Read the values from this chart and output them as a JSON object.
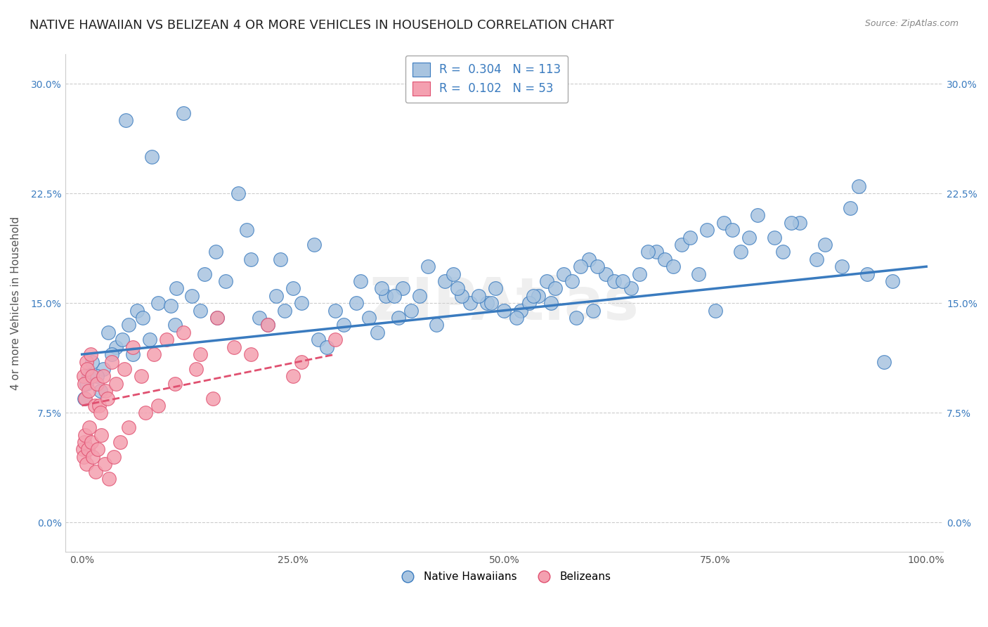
{
  "title": "NATIVE HAWAIIAN VS BELIZEAN 4 OR MORE VEHICLES IN HOUSEHOLD CORRELATION CHART",
  "source": "Source: ZipAtlas.com",
  "ylabel": "4 or more Vehicles in Household",
  "xlabel": "",
  "xlim": [
    0,
    100
  ],
  "ylim": [
    -2,
    32
  ],
  "yticks": [
    0,
    7.5,
    15,
    22.5,
    30
  ],
  "xticks": [
    0,
    25,
    50,
    75,
    100
  ],
  "xtick_labels": [
    "0.0%",
    "25.0%",
    "50.0%",
    "75.0%",
    "100.0%"
  ],
  "ytick_labels": [
    "0.0%",
    "7.5%",
    "15.0%",
    "22.5%",
    "30.0%"
  ],
  "blue_R": 0.304,
  "blue_N": 113,
  "pink_R": 0.102,
  "pink_N": 53,
  "blue_color": "#a8c4e0",
  "pink_color": "#f4a0b0",
  "blue_line_color": "#3a7bbf",
  "pink_line_color": "#e05070",
  "legend_color": "#3a7bbf",
  "title_fontsize": 13,
  "axis_label_fontsize": 11,
  "tick_fontsize": 10,
  "background_color": "#ffffff",
  "watermark_text": "ZIPAtlas",
  "blue_scatter_x": [
    5.2,
    12.0,
    18.5,
    8.3,
    3.1,
    2.5,
    4.0,
    6.5,
    1.2,
    0.8,
    0.5,
    0.3,
    1.8,
    2.2,
    3.5,
    4.8,
    5.5,
    7.2,
    9.0,
    10.5,
    11.2,
    13.0,
    14.5,
    15.8,
    17.0,
    19.5,
    21.0,
    23.5,
    25.0,
    27.5,
    30.0,
    32.5,
    35.0,
    37.5,
    40.0,
    43.0,
    46.0,
    49.0,
    52.0,
    55.0,
    48.0,
    51.5,
    54.0,
    57.0,
    60.0,
    55.5,
    58.0,
    62.0,
    65.0,
    68.0,
    71.0,
    74.0,
    78.0,
    82.0,
    85.0,
    90.0,
    42.0,
    44.0,
    33.0,
    36.0,
    38.0,
    41.0,
    28.0,
    20.0,
    16.0,
    22.0,
    24.0,
    26.0,
    29.0,
    31.0,
    34.0,
    39.0,
    45.0,
    50.0,
    53.0,
    56.0,
    59.0,
    63.0,
    66.0,
    69.0,
    72.0,
    76.0,
    80.0,
    87.0,
    93.0,
    96.0,
    48.5,
    44.5,
    37.0,
    61.0,
    67.0,
    73.0,
    77.0,
    83.0,
    88.0,
    6.0,
    8.0,
    11.0,
    14.0,
    23.0,
    35.5,
    47.0,
    64.0,
    70.0,
    75.0,
    79.0,
    84.0,
    91.0,
    58.5,
    95.0,
    53.5,
    60.5,
    92.0
  ],
  "blue_scatter_y": [
    27.5,
    28.0,
    22.5,
    25.0,
    13.0,
    10.5,
    12.0,
    14.5,
    11.0,
    10.0,
    9.5,
    8.5,
    10.0,
    9.0,
    11.5,
    12.5,
    13.5,
    14.0,
    15.0,
    14.8,
    16.0,
    15.5,
    17.0,
    18.5,
    16.5,
    20.0,
    14.0,
    18.0,
    16.0,
    19.0,
    14.5,
    15.0,
    13.0,
    14.0,
    15.5,
    16.5,
    15.0,
    16.0,
    14.5,
    16.5,
    15.0,
    14.0,
    15.5,
    17.0,
    18.0,
    15.0,
    16.5,
    17.0,
    16.0,
    18.5,
    19.0,
    20.0,
    18.5,
    19.5,
    20.5,
    17.5,
    13.5,
    17.0,
    16.5,
    15.5,
    16.0,
    17.5,
    12.5,
    18.0,
    14.0,
    13.5,
    14.5,
    15.0,
    12.0,
    13.5,
    14.0,
    14.5,
    15.5,
    14.5,
    15.0,
    16.0,
    17.5,
    16.5,
    17.0,
    18.0,
    19.5,
    20.5,
    21.0,
    18.0,
    17.0,
    16.5,
    15.0,
    16.0,
    15.5,
    17.5,
    18.5,
    17.0,
    20.0,
    18.5,
    19.0,
    11.5,
    12.5,
    13.5,
    14.5,
    15.5,
    16.0,
    15.5,
    16.5,
    17.5,
    14.5,
    19.5,
    20.5,
    21.5,
    14.0,
    11.0,
    15.5,
    14.5,
    23.0
  ],
  "pink_scatter_x": [
    0.2,
    0.3,
    0.5,
    0.4,
    0.6,
    0.8,
    1.0,
    1.2,
    1.5,
    1.8,
    2.0,
    2.2,
    2.5,
    2.8,
    3.0,
    3.5,
    4.0,
    5.0,
    6.0,
    7.0,
    8.5,
    10.0,
    12.0,
    14.0,
    16.0,
    18.0,
    22.0,
    26.0,
    30.0,
    0.1,
    0.2,
    0.3,
    0.4,
    0.5,
    0.7,
    0.9,
    1.1,
    1.3,
    1.6,
    1.9,
    2.3,
    2.7,
    3.2,
    3.8,
    4.5,
    5.5,
    7.5,
    9.0,
    11.0,
    13.5,
    15.5,
    20.0,
    25.0
  ],
  "pink_scatter_y": [
    10.0,
    9.5,
    11.0,
    8.5,
    10.5,
    9.0,
    11.5,
    10.0,
    8.0,
    9.5,
    8.0,
    7.5,
    10.0,
    9.0,
    8.5,
    11.0,
    9.5,
    10.5,
    12.0,
    10.0,
    11.5,
    12.5,
    13.0,
    11.5,
    14.0,
    12.0,
    13.5,
    11.0,
    12.5,
    5.0,
    4.5,
    5.5,
    6.0,
    4.0,
    5.0,
    6.5,
    5.5,
    4.5,
    3.5,
    5.0,
    6.0,
    4.0,
    3.0,
    4.5,
    5.5,
    6.5,
    7.5,
    8.0,
    9.5,
    10.5,
    8.5,
    11.5,
    10.0
  ],
  "blue_line_x": [
    0,
    100
  ],
  "blue_line_y_start": 11.5,
  "blue_line_y_end": 17.5,
  "pink_line_x": [
    0,
    30
  ],
  "pink_line_y_start": 8.0,
  "pink_line_y_end": 11.5
}
